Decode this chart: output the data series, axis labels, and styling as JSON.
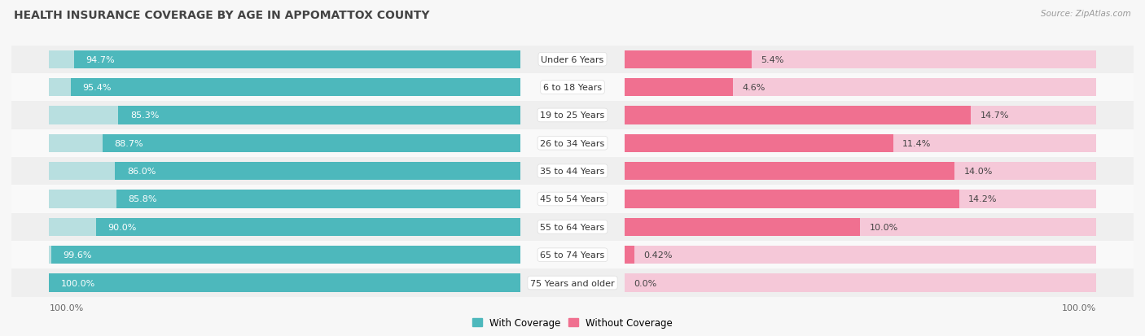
{
  "title": "HEALTH INSURANCE COVERAGE BY AGE IN APPOMATTOX COUNTY",
  "source": "Source: ZipAtlas.com",
  "categories": [
    "Under 6 Years",
    "6 to 18 Years",
    "19 to 25 Years",
    "26 to 34 Years",
    "35 to 44 Years",
    "45 to 54 Years",
    "55 to 64 Years",
    "65 to 74 Years",
    "75 Years and older"
  ],
  "with_coverage": [
    94.7,
    95.4,
    85.3,
    88.7,
    86.0,
    85.8,
    90.0,
    99.6,
    100.0
  ],
  "without_coverage": [
    5.4,
    4.6,
    14.7,
    11.4,
    14.0,
    14.2,
    10.0,
    0.42,
    0.0
  ],
  "with_coverage_labels": [
    "94.7%",
    "95.4%",
    "85.3%",
    "88.7%",
    "86.0%",
    "85.8%",
    "90.0%",
    "99.6%",
    "100.0%"
  ],
  "without_coverage_labels": [
    "5.4%",
    "4.6%",
    "14.7%",
    "11.4%",
    "14.0%",
    "14.2%",
    "10.0%",
    "0.42%",
    "0.0%"
  ],
  "color_with": "#4db8bc",
  "color_with_bg": "#b8dfe0",
  "color_without": "#f07090",
  "color_without_bg": "#f5c0cd",
  "color_without_light": "#f5c8d8",
  "title_fontsize": 10,
  "label_fontsize": 8,
  "legend_fontsize": 8.5,
  "axis_label_fontsize": 8,
  "figure_bg": "#f7f7f7"
}
